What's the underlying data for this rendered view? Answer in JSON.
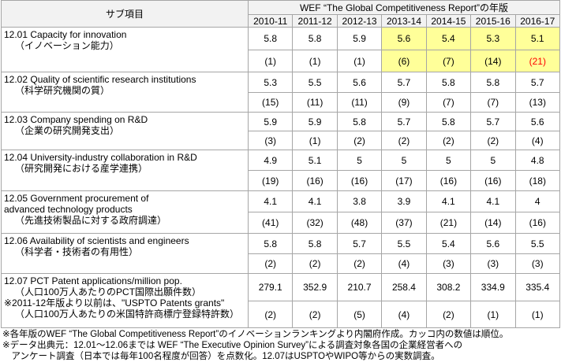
{
  "header": {
    "subitem_label": "サブ項目",
    "wef_label": "WEF “The Global Competitiveness Report”の年版",
    "years": [
      "2010-11",
      "2011-12",
      "2012-13",
      "2013-14",
      "2014-15",
      "2015-16",
      "2016-17"
    ]
  },
  "rows": [
    {
      "lines": [
        "12.01 Capacity for innovation",
        "（イノベーション能力）"
      ],
      "values": [
        "5.8",
        "5.8",
        "5.9",
        "5.6",
        "5.4",
        "5.3",
        "5.1"
      ],
      "ranks": [
        "(1)",
        "(1)",
        "(1)",
        "(6)",
        "(7)",
        "(14)",
        "(21)"
      ]
    },
    {
      "lines": [
        "12.02 Quality of scientific research institutions",
        "（科学研究機関の質）"
      ],
      "values": [
        "5.3",
        "5.5",
        "5.6",
        "5.7",
        "5.8",
        "5.8",
        "5.7"
      ],
      "ranks": [
        "(15)",
        "(11)",
        "(11)",
        "(9)",
        "(7)",
        "(7)",
        "(13)"
      ]
    },
    {
      "lines": [
        "12.03 Company spending on R&D",
        "（企業の研究開発支出）"
      ],
      "values": [
        "5.9",
        "5.9",
        "5.8",
        "5.7",
        "5.8",
        "5.7",
        "5.6"
      ],
      "ranks": [
        "(3)",
        "(1)",
        "(2)",
        "(2)",
        "(2)",
        "(2)",
        "(4)"
      ]
    },
    {
      "lines": [
        "12.04 University-industry collaboration in R&D",
        "（研究開発における産学連携）"
      ],
      "values": [
        "4.9",
        "5.1",
        "5",
        "5",
        "5",
        "5",
        "4.8"
      ],
      "ranks": [
        "(19)",
        "(16)",
        "(16)",
        "(17)",
        "(16)",
        "(16)",
        "(18)"
      ]
    },
    {
      "lines": [
        "12.05 Government procurement of",
        "advanced technology products",
        "（先進技術製品に対する政府調達）"
      ],
      "values": [
        "4.1",
        "4.1",
        "3.8",
        "3.9",
        "4.1",
        "4.1",
        "4"
      ],
      "ranks": [
        "(41)",
        "(32)",
        "(48)",
        "(37)",
        "(21)",
        "(14)",
        "(16)"
      ]
    },
    {
      "lines": [
        "12.06 Availability of scientists and engineers",
        "（科学者・技術者の有用性）"
      ],
      "values": [
        "5.8",
        "5.8",
        "5.7",
        "5.5",
        "5.4",
        "5.6",
        "5.5"
      ],
      "ranks": [
        "(2)",
        "(2)",
        "(2)",
        "(4)",
        "(3)",
        "(3)",
        "(3)"
      ]
    },
    {
      "lines": [
        "12.07 PCT Patent applications/million pop.",
        "（人口100万人あたりのPCT国際出願件数）",
        "※2011-12年版より以前は、\"USPTO Patents grants\"",
        "（人口100万人あたりの米国特許商標庁登録特許数）"
      ],
      "values": [
        "279.1",
        "352.9",
        "210.7",
        "258.4",
        "308.2",
        "334.9",
        "335.4"
      ],
      "ranks": [
        "(2)",
        "(2)",
        "(5)",
        "(4)",
        "(2)",
        "(1)",
        "(1)"
      ]
    }
  ],
  "footnotes": [
    "※各年版のWEF “The Global Competitiveness Report”のイノベーションランキングより内閣府作成。カッコ内の数値は順位。",
    "※データ出典元：12.01～12.06までは WEF “The Executive Opinion Survey”による調査対象各国の企業経営者への",
    "　アンケート調査（日本では毎年100名程度が回答）を点数化。12.07はUSPTOやWIPO等からの実数調査。"
  ]
}
